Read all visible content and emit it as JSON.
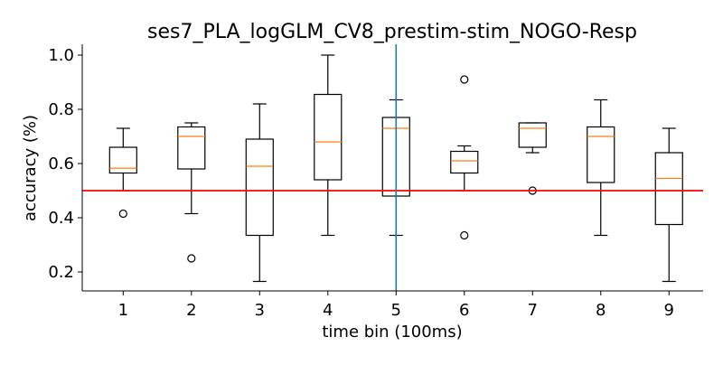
{
  "chart_data": {
    "type": "box",
    "title": "ses7_PLA_logGLM_CV8_prestim-stim_NOGO-Resp",
    "xlabel": "time bin (100ms)",
    "ylabel": "accuracy (%)",
    "xlim": [
      0.4,
      9.5
    ],
    "ylim": [
      0.13,
      1.04
    ],
    "x_ticks": [
      "1",
      "2",
      "3",
      "4",
      "5",
      "6",
      "7",
      "8",
      "9"
    ],
    "y_ticks": [
      "0.2",
      "0.4",
      "0.6",
      "0.8",
      "1.0"
    ],
    "y_tick_values": [
      0.2,
      0.4,
      0.6,
      0.8,
      1.0
    ],
    "grid": false,
    "boxes": [
      {
        "x": 1,
        "whisker_low": 0.5,
        "q1": 0.565,
        "median": 0.583,
        "q3": 0.66,
        "whisker_high": 0.73,
        "fliers": [
          0.415
        ]
      },
      {
        "x": 2,
        "whisker_low": 0.415,
        "q1": 0.58,
        "median": 0.7,
        "q3": 0.735,
        "whisker_high": 0.75,
        "fliers": [
          0.25
        ]
      },
      {
        "x": 3,
        "whisker_low": 0.165,
        "q1": 0.335,
        "median": 0.59,
        "q3": 0.69,
        "whisker_high": 0.82,
        "fliers": []
      },
      {
        "x": 4,
        "whisker_low": 0.335,
        "q1": 0.54,
        "median": 0.68,
        "q3": 0.855,
        "whisker_high": 1.0,
        "fliers": []
      },
      {
        "x": 5,
        "whisker_low": 0.335,
        "q1": 0.48,
        "median": 0.73,
        "q3": 0.77,
        "whisker_high": 0.835,
        "fliers": []
      },
      {
        "x": 6,
        "whisker_low": 0.5,
        "q1": 0.565,
        "median": 0.61,
        "q3": 0.645,
        "whisker_high": 0.665,
        "fliers": [
          0.91,
          0.335
        ]
      },
      {
        "x": 7,
        "whisker_low": 0.64,
        "q1": 0.66,
        "median": 0.73,
        "q3": 0.75,
        "whisker_high": 0.75,
        "fliers": [
          0.5
        ]
      },
      {
        "x": 8,
        "whisker_low": 0.335,
        "q1": 0.53,
        "median": 0.7,
        "q3": 0.735,
        "whisker_high": 0.835,
        "fliers": []
      },
      {
        "x": 9,
        "whisker_low": 0.165,
        "q1": 0.375,
        "median": 0.545,
        "q3": 0.64,
        "whisker_high": 0.73,
        "fliers": []
      }
    ],
    "hline": {
      "y": 0.5,
      "color": "#ff0000"
    },
    "vline": {
      "x": 5,
      "color": "#1f77b4"
    },
    "colors": {
      "box": "#000000",
      "median": "#ff7f0e",
      "axis": "#000000"
    }
  }
}
